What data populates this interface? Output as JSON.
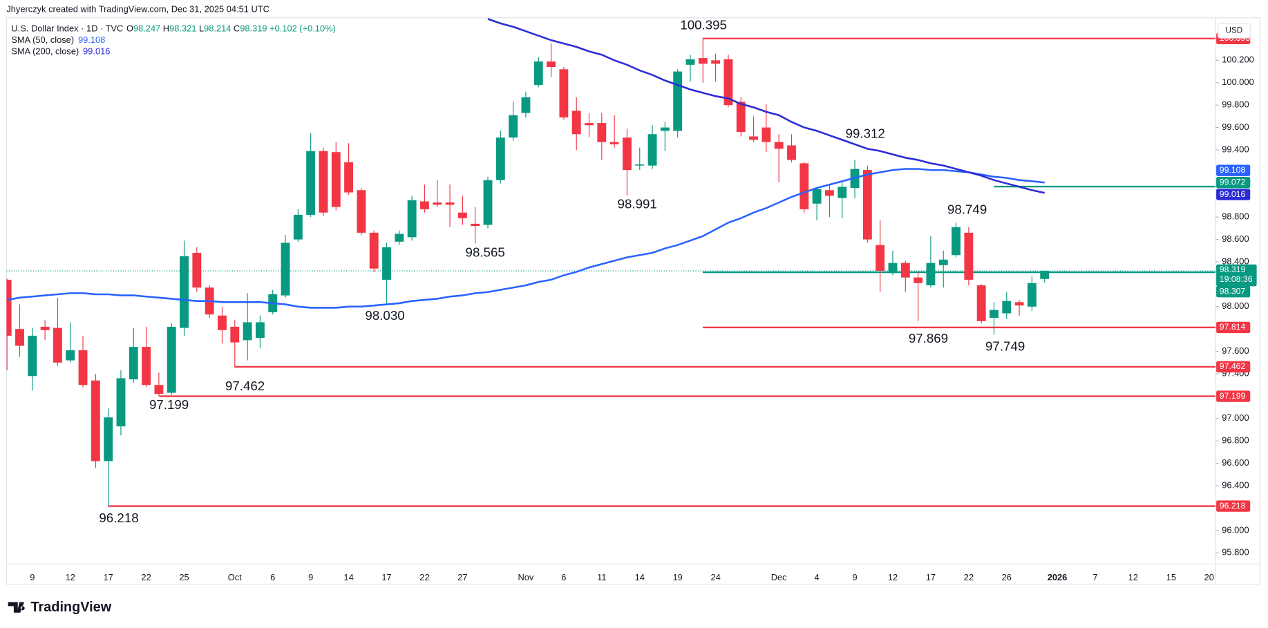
{
  "header": {
    "credit": "Jhyerczyk created with TradingView.com, Dec 31, 2025 04:51 UTC"
  },
  "footer": {
    "logo": "TradingView"
  },
  "chart_data": {
    "type": "candlestick",
    "title": "U.S. Dollar Index · 1D · TVC",
    "currency": "USD",
    "legend": [
      {
        "key": "O",
        "value": "98.247"
      },
      {
        "key": "H",
        "value": "98.321"
      },
      {
        "key": "L",
        "value": "98.214"
      },
      {
        "key": "C",
        "value": "98.319"
      }
    ],
    "change": "+0.102 (+0.10%)",
    "up_color": "#089981",
    "down_color": "#f23645",
    "grid": false,
    "categories": [
      null,
      null,
      "9",
      null,
      null,
      "12",
      null,
      null,
      "17",
      null,
      null,
      "22",
      null,
      null,
      "25",
      null,
      null,
      null,
      "Oct",
      null,
      null,
      "6",
      null,
      null,
      "9",
      null,
      null,
      "14",
      null,
      null,
      "17",
      null,
      null,
      "22",
      null,
      null,
      "27",
      null,
      null,
      null,
      null,
      "Nov",
      null,
      null,
      "6",
      null,
      null,
      "11",
      null,
      null,
      "14",
      null,
      null,
      "19",
      null,
      null,
      "24",
      null,
      null,
      null,
      null,
      "Dec",
      null,
      null,
      "4",
      null,
      null,
      "9",
      null,
      null,
      "12",
      null,
      null,
      "17",
      null,
      null,
      "22",
      null,
      null,
      "26",
      null,
      null,
      null,
      "2026",
      null,
      null,
      "7",
      null,
      null,
      "12",
      null,
      null,
      "15",
      null,
      null,
      "20"
    ],
    "open": [
      98.24,
      97.8,
      97.38,
      97.82,
      97.81,
      97.52,
      97.61,
      97.34,
      96.62,
      96.93,
      97.35,
      97.64,
      97.3,
      97.23,
      97.81,
      98.48,
      98.17,
      97.92,
      97.82,
      97.7,
      97.72,
      97.95,
      98.1,
      98.6,
      98.82,
      99.39,
      99.38,
      99.29,
      99.04,
      98.66,
      98.24,
      98.58,
      98.62,
      98.94,
      98.93,
      98.93,
      98.84,
      98.74,
      98.73,
      99.13,
      99.51,
      99.73,
      99.98,
      100.19,
      100.12,
      99.75,
      99.64,
      99.64,
      99.47,
      99.51,
      99.26,
      99.26,
      99.57,
      99.57,
      100.16,
      100.22,
      100.2,
      100.21,
      99.83,
      99.52,
      99.6,
      99.47,
      99.44,
      99.28,
      98.92,
      99.04,
      98.97,
      99.06,
      99.22,
      98.55,
      98.3,
      98.39,
      98.26,
      98.19,
      98.37,
      98.46,
      98.66,
      98.19,
      97.9,
      97.94,
      98.04,
      98.0,
      98.247,
      null,
      null,
      null,
      null,
      null,
      null,
      null,
      null,
      null,
      null,
      null,
      null,
      null
    ],
    "high": [
      98.25,
      98.02,
      97.81,
      97.88,
      98.08,
      97.86,
      97.74,
      97.4,
      97.09,
      97.43,
      97.81,
      97.82,
      97.41,
      97.85,
      98.59,
      98.53,
      98.19,
      98.0,
      97.88,
      98.12,
      97.92,
      98.15,
      98.64,
      98.87,
      99.55,
      99.42,
      99.47,
      99.46,
      99.06,
      98.68,
      98.57,
      98.68,
      98.99,
      99.09,
      99.13,
      99.09,
      98.99,
      98.89,
      99.16,
      99.57,
      99.83,
      99.92,
      100.23,
      100.35,
      100.14,
      99.87,
      99.73,
      99.73,
      99.71,
      99.59,
      99.42,
      99.62,
      99.65,
      100.12,
      100.25,
      100.395,
      100.26,
      100.25,
      99.87,
      99.7,
      99.81,
      99.54,
      99.54,
      99.29,
      99.07,
      99.09,
      99.11,
      99.312,
      99.26,
      98.77,
      98.5,
      98.41,
      98.31,
      98.63,
      98.5,
      98.749,
      98.71,
      98.2,
      98.04,
      98.13,
      98.06,
      98.27,
      98.321,
      null,
      null,
      null,
      null,
      null,
      null,
      null,
      null,
      null,
      null,
      null,
      null,
      null
    ],
    "low": [
      97.43,
      97.55,
      97.25,
      97.7,
      97.47,
      97.5,
      97.28,
      96.56,
      96.218,
      96.85,
      97.32,
      97.28,
      97.199,
      97.21,
      97.74,
      98.13,
      97.9,
      97.67,
      97.462,
      97.52,
      97.63,
      97.93,
      98.08,
      98.58,
      98.8,
      98.81,
      98.86,
      99.0,
      98.64,
      98.31,
      98.03,
      98.55,
      98.59,
      98.84,
      98.89,
      98.71,
      98.73,
      98.565,
      98.7,
      99.1,
      99.48,
      99.69,
      99.96,
      100.05,
      99.67,
      99.4,
      99.51,
      99.31,
      99.42,
      98.991,
      99.22,
      99.23,
      99.39,
      99.51,
      100.01,
      100.0,
      100.01,
      99.78,
      99.52,
      99.47,
      99.38,
      99.11,
      99.29,
      98.84,
      98.77,
      98.8,
      98.79,
      98.97,
      98.57,
      98.13,
      98.28,
      98.13,
      97.869,
      98.17,
      98.17,
      98.44,
      98.19,
      97.85,
      97.749,
      97.89,
      97.92,
      97.96,
      98.214,
      null,
      null,
      null,
      null,
      null,
      null,
      null,
      null,
      null,
      null,
      null,
      null,
      null
    ],
    "close": [
      97.74,
      97.65,
      97.74,
      97.79,
      97.5,
      97.61,
      97.3,
      96.62,
      97.01,
      97.36,
      97.64,
      97.3,
      97.22,
      97.82,
      98.45,
      98.17,
      97.93,
      97.79,
      97.68,
      97.86,
      97.86,
      98.11,
      98.57,
      98.82,
      99.39,
      98.84,
      98.89,
      99.02,
      98.66,
      98.34,
      98.53,
      98.65,
      98.95,
      98.87,
      98.91,
      98.91,
      98.79,
      98.72,
      99.13,
      99.51,
      99.71,
      99.87,
      100.19,
      100.14,
      99.69,
      99.54,
      99.62,
      99.47,
      99.45,
      99.22,
      99.27,
      99.54,
      99.6,
      100.1,
      100.21,
      100.17,
      100.17,
      99.8,
      99.56,
      99.49,
      99.47,
      99.41,
      99.31,
      98.87,
      99.05,
      98.99,
      99.07,
      99.23,
      98.6,
      98.32,
      98.39,
      98.26,
      98.21,
      98.39,
      98.42,
      98.71,
      98.24,
      97.87,
      97.97,
      98.05,
      98.01,
      98.21,
      98.319,
      null,
      null,
      null,
      null,
      null,
      null,
      null,
      null,
      null,
      null,
      null,
      null,
      null
    ],
    "series": [
      {
        "name": "SMA (50, close)",
        "legend_value": "99.108",
        "color": "#2962ff",
        "values": [
          98.06,
          98.08,
          98.09,
          98.1,
          98.11,
          98.12,
          98.12,
          98.11,
          98.11,
          98.1,
          98.1,
          98.09,
          98.08,
          98.07,
          98.06,
          98.05,
          98.05,
          98.04,
          98.04,
          98.04,
          98.04,
          98.03,
          98.02,
          98.0,
          97.99,
          97.99,
          97.99,
          98.0,
          98.0,
          98.01,
          98.02,
          98.03,
          98.05,
          98.06,
          98.07,
          98.09,
          98.1,
          98.12,
          98.13,
          98.15,
          98.17,
          98.19,
          98.22,
          98.24,
          98.28,
          98.31,
          98.35,
          98.38,
          98.41,
          98.44,
          98.46,
          98.48,
          98.52,
          98.55,
          98.59,
          98.63,
          98.69,
          98.75,
          98.79,
          98.84,
          98.88,
          98.93,
          98.98,
          99.02,
          99.06,
          99.09,
          99.12,
          99.15,
          99.18,
          99.2,
          99.22,
          99.23,
          99.23,
          99.22,
          99.22,
          99.21,
          99.2,
          99.18,
          99.16,
          99.15,
          99.13,
          99.12,
          99.108,
          null,
          null,
          null,
          null,
          null,
          null,
          null,
          null,
          null,
          null,
          null,
          null,
          null
        ]
      },
      {
        "name": "SMA (200, close)",
        "legend_value": "99.016",
        "color": "#2c2cd6",
        "values": [
          null,
          null,
          null,
          null,
          null,
          null,
          null,
          null,
          null,
          null,
          null,
          null,
          null,
          null,
          null,
          null,
          null,
          null,
          null,
          null,
          null,
          null,
          null,
          null,
          null,
          null,
          null,
          null,
          null,
          null,
          null,
          null,
          null,
          null,
          null,
          null,
          null,
          null,
          100.57,
          100.53,
          100.5,
          100.46,
          100.42,
          100.38,
          100.35,
          100.32,
          100.28,
          100.25,
          100.2,
          100.16,
          100.11,
          100.07,
          100.02,
          99.98,
          99.94,
          99.91,
          99.88,
          99.86,
          99.81,
          99.78,
          99.74,
          99.71,
          99.65,
          99.6,
          99.57,
          99.53,
          99.49,
          99.45,
          99.41,
          99.39,
          99.36,
          99.33,
          99.31,
          99.28,
          99.26,
          99.23,
          99.2,
          99.17,
          99.13,
          99.1,
          99.07,
          99.04,
          99.016,
          null,
          null,
          null,
          null,
          null,
          null,
          null,
          null,
          null,
          null,
          null,
          null,
          null
        ]
      }
    ],
    "ylim": [
      95.7,
      100.58
    ],
    "yticks": [
      {
        "value": 95.8,
        "label": "95.800"
      },
      {
        "value": 96.0,
        "label": "96.000"
      },
      {
        "value": 96.4,
        "label": "96.400"
      },
      {
        "value": 96.6,
        "label": "96.600"
      },
      {
        "value": 96.8,
        "label": "96.800"
      },
      {
        "value": 97.0,
        "label": "97.000"
      },
      {
        "value": 97.4,
        "label": "97.400"
      },
      {
        "value": 97.6,
        "label": "97.600"
      },
      {
        "value": 98.0,
        "label": "98.000"
      },
      {
        "value": 98.4,
        "label": "98.400"
      },
      {
        "value": 98.6,
        "label": "98.600"
      },
      {
        "value": 98.8,
        "label": "98.800"
      },
      {
        "value": 99.4,
        "label": "99.400"
      },
      {
        "value": 99.6,
        "label": "99.600"
      },
      {
        "value": 99.8,
        "label": "99.800"
      },
      {
        "value": 100.0,
        "label": "100.000"
      },
      {
        "value": 100.2,
        "label": "100.200"
      }
    ],
    "levels": [
      {
        "value": 100.395,
        "color": "#f23645"
      },
      {
        "value": 97.814,
        "color": "#f23645"
      },
      {
        "value": 97.462,
        "color": "#f23645"
      },
      {
        "value": 97.199,
        "color": "#f23645"
      },
      {
        "value": 96.218,
        "color": "#f23645"
      },
      {
        "value": 98.307,
        "color": "#089981"
      },
      {
        "value": 99.072,
        "color": "#089981"
      }
    ],
    "current_price": {
      "value": 98.319,
      "countdown": "19:08:36",
      "color": "#089981"
    },
    "annotations": [
      "100.395",
      "99.312",
      "98.749",
      "98.991",
      "98.565",
      "98.030",
      "97.869",
      "97.749",
      "97.462",
      "97.199",
      "96.218"
    ]
  }
}
